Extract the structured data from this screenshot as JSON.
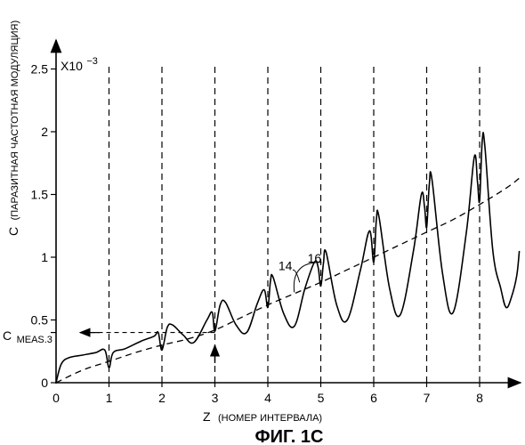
{
  "chart_data": {
    "type": "line",
    "title": "ФИГ. 1C",
    "xlabel_main": "Z",
    "xlabel_sub": "(НОМЕР ИНТЕРВАЛА)",
    "ylabel_main": "C",
    "ylabel_sub": "(ПАРАЗИТНАЯ ЧАСТОТНАЯ МОДУЛЯЦИЯ)",
    "y_multiplier": "X10",
    "y_exponent": "−3",
    "xlim": [
      0,
      8.75
    ],
    "ylim": [
      0,
      2.7
    ],
    "x_ticks": [
      "0",
      "1",
      "2",
      "3",
      "4",
      "5",
      "6",
      "7",
      "8"
    ],
    "y_ticks": [
      "0",
      "0.5",
      "1",
      "1.5",
      "2",
      "2.5"
    ],
    "grid": "vertical dashed lines at integer Z",
    "annotation_cmeas_main": "C",
    "annotation_cmeas_sub": "MEAS.3",
    "cmeas_value": 0.4,
    "cmeas_z": 3,
    "series": [
      {
        "name": "14",
        "style": "solid",
        "points": [
          [
            0,
            0
          ],
          [
            0.1,
            0.15
          ],
          [
            0.25,
            0.2
          ],
          [
            0.5,
            0.22
          ],
          [
            0.75,
            0.24
          ],
          [
            0.92,
            0.26
          ],
          [
            1.0,
            0.12
          ],
          [
            1.08,
            0.24
          ],
          [
            1.3,
            0.27
          ],
          [
            1.6,
            0.33
          ],
          [
            1.85,
            0.37
          ],
          [
            1.93,
            0.4
          ],
          [
            2.0,
            0.26
          ],
          [
            2.1,
            0.44
          ],
          [
            2.2,
            0.46
          ],
          [
            2.4,
            0.38
          ],
          [
            2.6,
            0.32
          ],
          [
            2.85,
            0.5
          ],
          [
            2.95,
            0.56
          ],
          [
            3.0,
            0.41
          ],
          [
            3.1,
            0.62
          ],
          [
            3.2,
            0.64
          ],
          [
            3.4,
            0.46
          ],
          [
            3.6,
            0.4
          ],
          [
            3.8,
            0.63
          ],
          [
            3.93,
            0.74
          ],
          [
            4.0,
            0.6
          ],
          [
            4.05,
            0.81
          ],
          [
            4.1,
            0.84
          ],
          [
            4.3,
            0.55
          ],
          [
            4.5,
            0.45
          ],
          [
            4.7,
            0.75
          ],
          [
            4.88,
            0.96
          ],
          [
            4.95,
            0.92
          ],
          [
            5.0,
            0.77
          ],
          [
            5.05,
            0.95
          ],
          [
            5.1,
            1.04
          ],
          [
            5.3,
            0.62
          ],
          [
            5.5,
            0.5
          ],
          [
            5.75,
            0.9
          ],
          [
            5.92,
            1.21
          ],
          [
            6.0,
            0.96
          ],
          [
            6.05,
            1.3
          ],
          [
            6.1,
            1.32
          ],
          [
            6.3,
            0.75
          ],
          [
            6.5,
            0.54
          ],
          [
            6.75,
            1.05
          ],
          [
            6.9,
            1.5
          ],
          [
            6.96,
            1.4
          ],
          [
            7.0,
            1.24
          ],
          [
            7.05,
            1.58
          ],
          [
            7.1,
            1.62
          ],
          [
            7.3,
            0.87
          ],
          [
            7.5,
            0.56
          ],
          [
            7.75,
            1.2
          ],
          [
            7.9,
            1.8
          ],
          [
            7.96,
            1.6
          ],
          [
            8.0,
            1.45
          ],
          [
            8.05,
            1.93
          ],
          [
            8.1,
            1.88
          ],
          [
            8.25,
            1.05
          ],
          [
            8.4,
            0.75
          ],
          [
            8.5,
            0.6
          ],
          [
            8.6,
            0.68
          ],
          [
            8.7,
            0.85
          ],
          [
            8.75,
            1.05
          ]
        ]
      },
      {
        "name": "16",
        "style": "dashed",
        "points": [
          [
            0,
            0
          ],
          [
            0.5,
            0.1
          ],
          [
            1,
            0.17
          ],
          [
            1.5,
            0.24
          ],
          [
            2,
            0.3
          ],
          [
            2.5,
            0.35
          ],
          [
            3,
            0.42
          ],
          [
            3.5,
            0.52
          ],
          [
            4,
            0.62
          ],
          [
            4.5,
            0.71
          ],
          [
            5,
            0.8
          ],
          [
            5.5,
            0.9
          ],
          [
            6,
            1.0
          ],
          [
            6.5,
            1.1
          ],
          [
            7,
            1.2
          ],
          [
            7.5,
            1.3
          ],
          [
            8,
            1.42
          ],
          [
            8.5,
            1.55
          ],
          [
            8.75,
            1.63
          ]
        ]
      }
    ],
    "callouts": [
      {
        "label": "14",
        "at": [
          4.6,
          0.8
        ],
        "text_at": [
          4.3,
          0.92
        ]
      },
      {
        "label": "16",
        "at": [
          4.5,
          0.72
        ],
        "text_at": [
          4.85,
          0.98
        ]
      }
    ]
  }
}
